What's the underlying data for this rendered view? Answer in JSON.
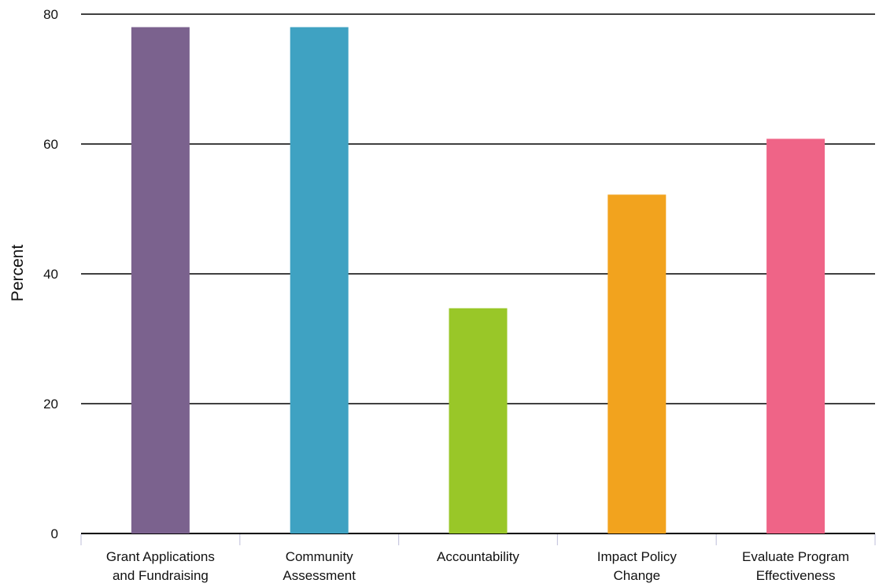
{
  "chart_data": {
    "type": "bar",
    "title": "",
    "xlabel": "",
    "ylabel": "Percent",
    "ylim": [
      0,
      80
    ],
    "yticks": [
      0,
      20,
      40,
      60,
      80
    ],
    "grid": true,
    "legend": "none",
    "categories": [
      [
        "Grant Applications",
        "and Fundraising"
      ],
      [
        "Community",
        "Assessment"
      ],
      [
        "Accountability"
      ],
      [
        "Impact Policy",
        "Change"
      ],
      [
        "Evaluate Program",
        "Effectiveness"
      ]
    ],
    "values": [
      78,
      78,
      34.7,
      52.2,
      60.8
    ],
    "colors": [
      "#7b628e",
      "#3fa2c2",
      "#99c728",
      "#f2a31e",
      "#ef6487"
    ]
  }
}
